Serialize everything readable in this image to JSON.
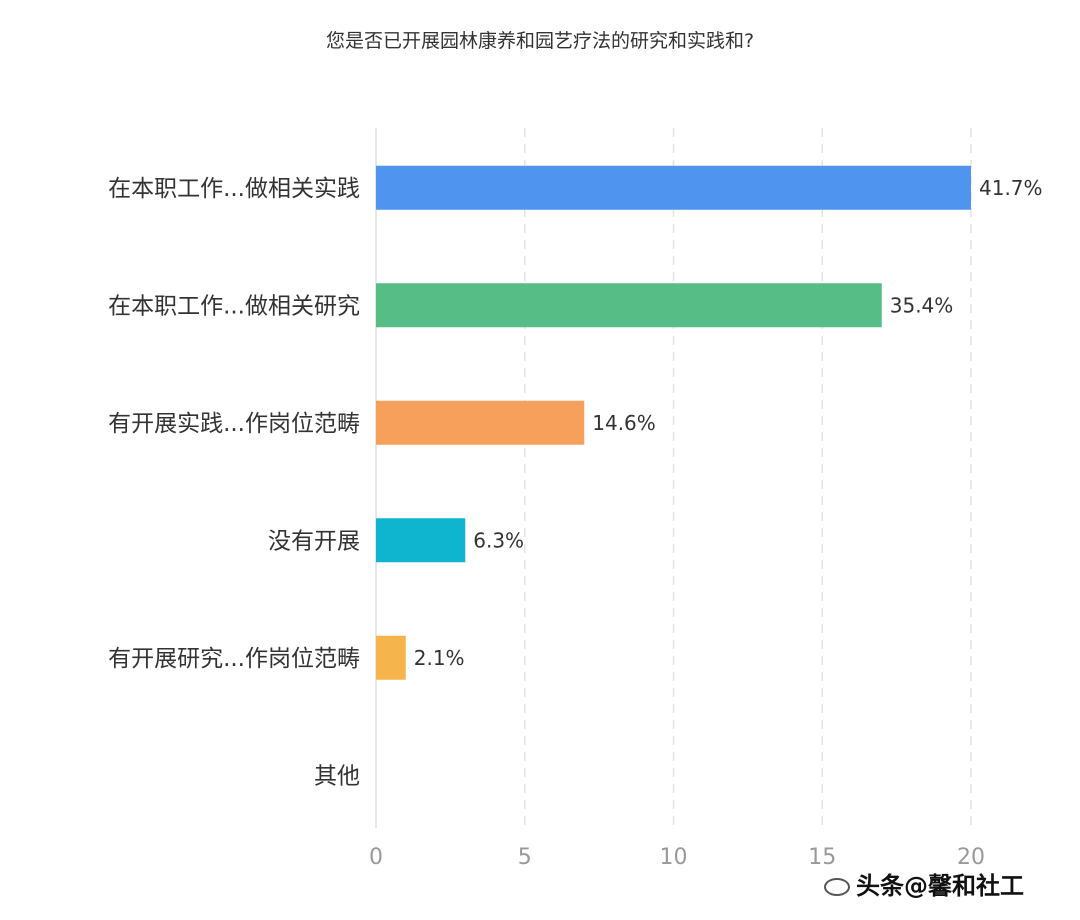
{
  "title": "您是否已开展园林康养和园艺疗法的研究和实践和?",
  "watermark": "头条@馨和社工",
  "chart_data": {
    "type": "bar",
    "orientation": "horizontal",
    "title": "您是否已开展园林康养和园艺疗法的研究和实践和?",
    "categories": [
      "在本职工作...做相关实践",
      "在本职工作...做相关研究",
      "有开展实践...作岗位范畴",
      "没有开展",
      "有开展研究...作岗位范畴",
      "其他"
    ],
    "values": [
      20,
      17,
      7,
      3,
      1,
      0
    ],
    "value_labels": [
      "41.7%",
      "35.4%",
      "14.6%",
      "6.3%",
      "2.1%",
      ""
    ],
    "colors": [
      "#4f94ee",
      "#57bd87",
      "#f6a05b",
      "#0fb4cf",
      "#f6b44c",
      "#cccccc"
    ],
    "xlim": [
      0,
      20
    ],
    "xticks": [
      "0",
      "5",
      "10",
      "15",
      "20"
    ],
    "grid": true
  }
}
